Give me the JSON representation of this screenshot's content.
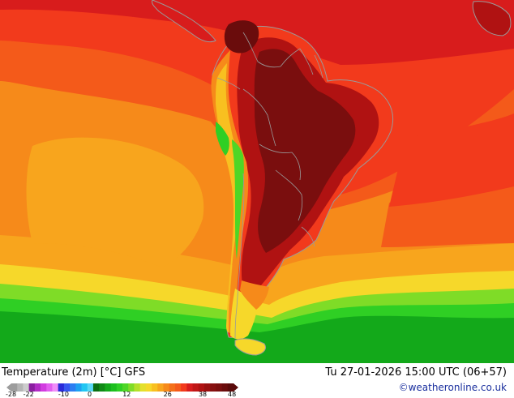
{
  "map": {
    "title": "Temperature (2m) [°C] GFS",
    "datetime": "Tu 27-01-2026 15:00 UTC (06+57)",
    "credit": "©weatheronline.co.uk",
    "region": "South America",
    "colors": {
      "hottest": "#7a0e0e",
      "very_hot": "#b01212",
      "hot": "#d81c1c",
      "warm": "#f23a1c",
      "orange_red": "#f45a1a",
      "orange": "#f68a1a",
      "light_orange": "#f8a51d",
      "yellow": "#f6d82a",
      "light_green": "#7fdc27",
      "green": "#2fcf24",
      "dark_green": "#13a91a",
      "coast": "#9a9a9a"
    }
  },
  "legend": {
    "ticks": [
      "-28",
      "-22",
      "-10",
      "0",
      "12",
      "26",
      "38",
      "48"
    ],
    "tick_values": [
      -28,
      -22,
      -10,
      0,
      12,
      26,
      38,
      48
    ],
    "min": -28,
    "max": 48,
    "swatches": [
      {
        "color": "#9c9c9c",
        "from": -28,
        "to": -26
      },
      {
        "color": "#b4b4b4",
        "from": -26,
        "to": -24
      },
      {
        "color": "#cccccc",
        "from": -24,
        "to": -22
      },
      {
        "color": "#8a1ea0",
        "from": -22,
        "to": -20
      },
      {
        "color": "#b22cc6",
        "from": -20,
        "to": -18
      },
      {
        "color": "#d23ce0",
        "from": -18,
        "to": -16
      },
      {
        "color": "#e25ef0",
        "from": -16,
        "to": -14
      },
      {
        "color": "#f08cf8",
        "from": -14,
        "to": -12
      },
      {
        "color": "#2a2ad8",
        "from": -12,
        "to": -10
      },
      {
        "color": "#3656f0",
        "from": -10,
        "to": -8
      },
      {
        "color": "#2c7ef2",
        "from": -8,
        "to": -6
      },
      {
        "color": "#1ea2f2",
        "from": -6,
        "to": -4
      },
      {
        "color": "#22c6f2",
        "from": -4,
        "to": -2
      },
      {
        "color": "#5ad8f6",
        "from": -2,
        "to": 0
      },
      {
        "color": "#0b6e12",
        "from": 0,
        "to": 2
      },
      {
        "color": "#0f8a16",
        "from": 2,
        "to": 4
      },
      {
        "color": "#13a91a",
        "from": 4,
        "to": 6
      },
      {
        "color": "#1cbf1e",
        "from": 6,
        "to": 8
      },
      {
        "color": "#2fcf24",
        "from": 8,
        "to": 10
      },
      {
        "color": "#4ed626",
        "from": 10,
        "to": 12
      },
      {
        "color": "#7fdc27",
        "from": 12,
        "to": 14
      },
      {
        "color": "#b4e02a",
        "from": 14,
        "to": 16
      },
      {
        "color": "#e4e02c",
        "from": 16,
        "to": 18
      },
      {
        "color": "#f6d82a",
        "from": 18,
        "to": 20
      },
      {
        "color": "#f8c020",
        "from": 20,
        "to": 22
      },
      {
        "color": "#f8a51d",
        "from": 22,
        "to": 24
      },
      {
        "color": "#f68a1a",
        "from": 24,
        "to": 26
      },
      {
        "color": "#f47019",
        "from": 26,
        "to": 28
      },
      {
        "color": "#f45a1a",
        "from": 28,
        "to": 30
      },
      {
        "color": "#f23a1c",
        "from": 30,
        "to": 32
      },
      {
        "color": "#d81c1c",
        "from": 32,
        "to": 34
      },
      {
        "color": "#c01616",
        "from": 34,
        "to": 36
      },
      {
        "color": "#b01212",
        "from": 36,
        "to": 38
      },
      {
        "color": "#9a1010",
        "from": 38,
        "to": 40
      },
      {
        "color": "#861010",
        "from": 40,
        "to": 42
      },
      {
        "color": "#7a0e0e",
        "from": 42,
        "to": 44
      },
      {
        "color": "#6a0c0c",
        "from": 44,
        "to": 46
      },
      {
        "color": "#5a0a0a",
        "from": 46,
        "to": 48
      }
    ]
  }
}
